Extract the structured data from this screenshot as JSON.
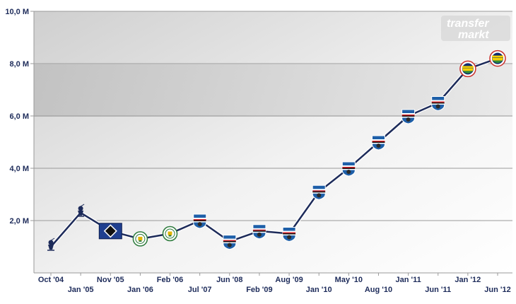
{
  "chart_data": {
    "type": "line",
    "title": "",
    "xlabel": "",
    "ylabel": "",
    "ylim": [
      0,
      10
    ],
    "yticks": [
      "2,0 M",
      "4,0 M",
      "6,0 M",
      "8,0 M",
      "10,0 M"
    ],
    "grid": true,
    "legend": "none",
    "line_color": "#1d2b5a",
    "categories": [
      "Oct '04",
      "Jan '05",
      "Nov '05",
      "Jan '06",
      "Feb '06",
      "Jul '07",
      "Jun '08",
      "Feb '09",
      "Aug '09",
      "Jan '10",
      "May '10",
      "Aug '10",
      "Jan '11",
      "Jun '11",
      "Jan '12",
      "Jun '12"
    ],
    "series": [
      {
        "values": [
          1.0,
          2.3,
          1.6,
          1.3,
          1.5,
          2.0,
          1.2,
          1.6,
          1.5,
          3.1,
          4.0,
          5.0,
          6.0,
          6.5,
          7.8,
          8.2
        ],
        "club_icons": [
          "tottenham-icon",
          "tottenham-icon",
          "hamburg-icon",
          "wigan-icon",
          "wigan-icon",
          "sampdoria-icon",
          "sampdoria-icon",
          "sampdoria-icon",
          "sampdoria-icon",
          "sampdoria-icon",
          "sampdoria-icon",
          "sampdoria-icon",
          "sampdoria-icon",
          "sampdoria-icon",
          "fenerbahce-icon",
          "fenerbahce-icon"
        ]
      }
    ]
  },
  "watermark": {
    "line1": "transfer",
    "line2": "markt"
  }
}
